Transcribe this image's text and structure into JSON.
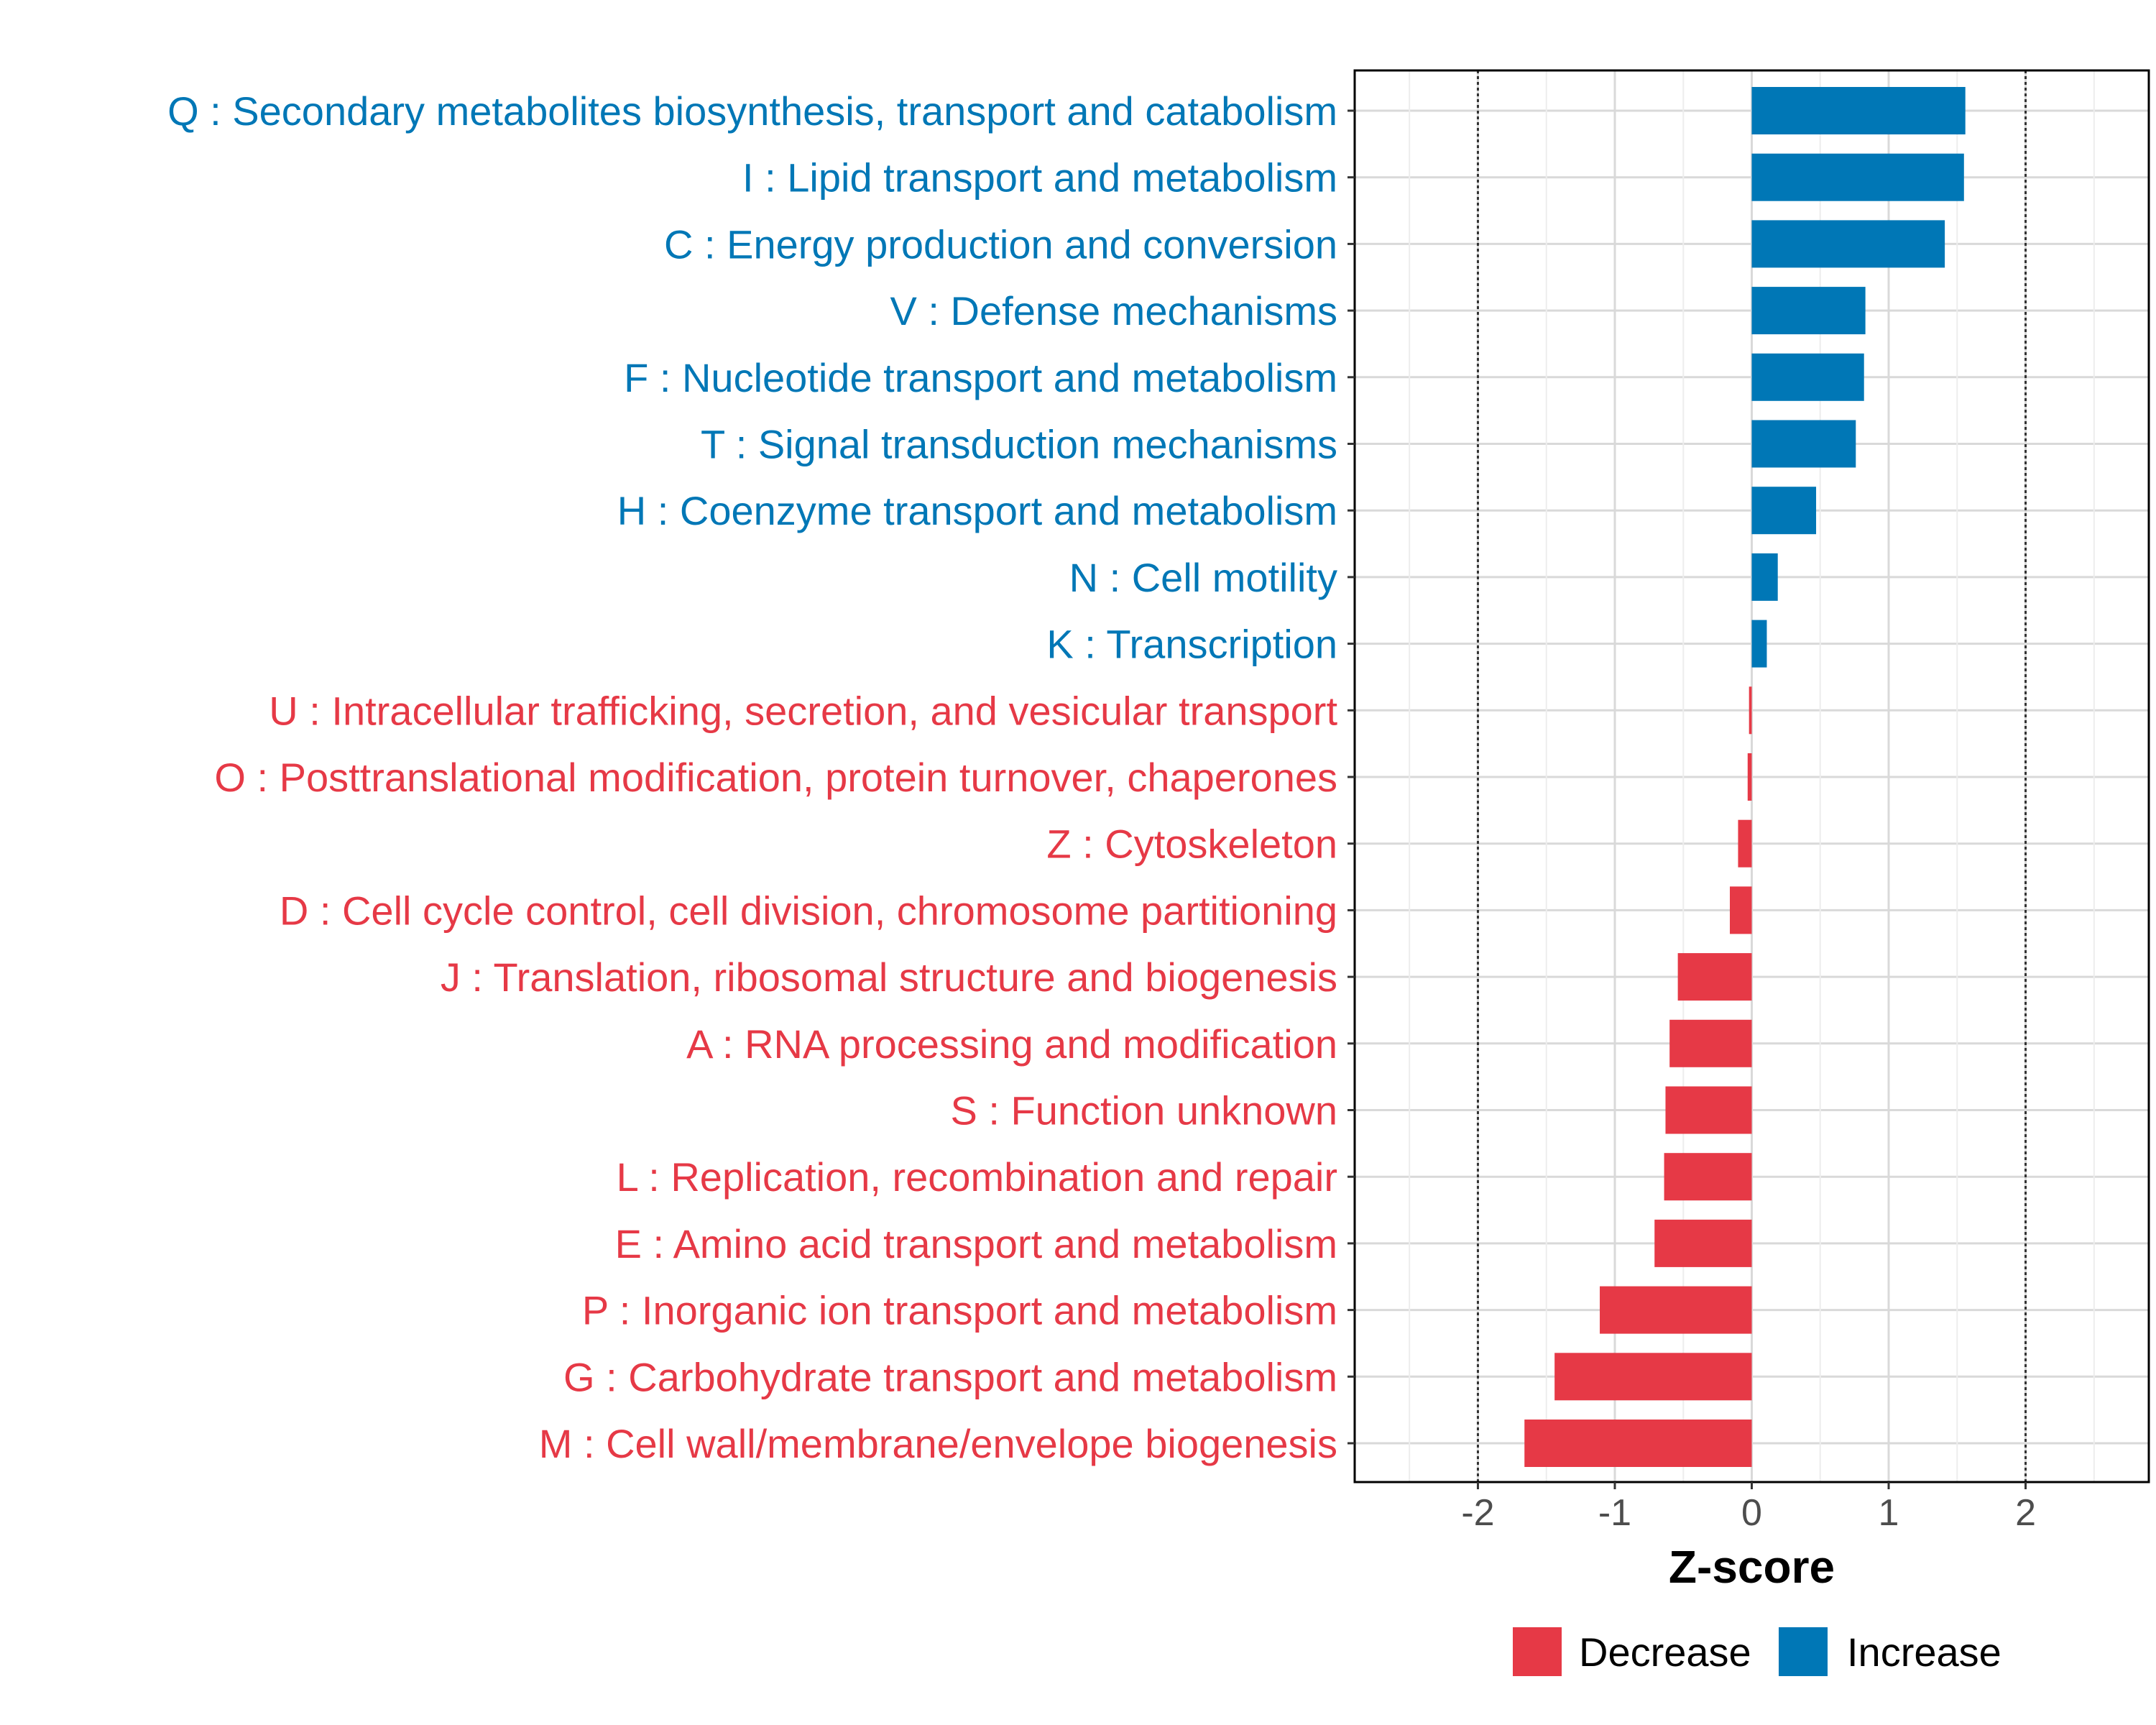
{
  "chart_data": {
    "type": "bar",
    "orientation": "horizontal",
    "xlabel": "Z-score",
    "xlim": [
      -2.9,
      2.9
    ],
    "xticks": [
      -2,
      -1,
      0,
      1,
      2
    ],
    "xtick_labels": [
      "-2",
      "-1",
      "0",
      "1",
      "2"
    ],
    "reference_lines": [
      -2,
      2
    ],
    "grid": true,
    "legend_position": "bottom",
    "legend": [
      {
        "name": "Decrease",
        "color": "#E63946"
      },
      {
        "name": "Increase",
        "color": "#0077B6"
      }
    ],
    "categories": [
      "Q : Secondary metabolites biosynthesis, transport and catabolism",
      "I : Lipid transport and metabolism",
      "C : Energy production and conversion",
      "V : Defense mechanisms",
      "F : Nucleotide transport and metabolism",
      "T : Signal transduction mechanisms",
      "H : Coenzyme transport and metabolism",
      "N : Cell motility",
      "K : Transcription",
      "U : Intracellular trafficking, secretion, and vesicular transport",
      "O : Posttranslational modification, protein turnover, chaperones",
      "Z : Cytoskeleton",
      "D : Cell cycle control, cell division, chromosome partitioning",
      "J : Translation, ribosomal structure and biogenesis",
      "A : RNA processing and modification",
      "S : Function unknown",
      "L : Replication, recombination and repair",
      "E : Amino acid transport and metabolism",
      "P : Inorganic ion transport and metabolism",
      "G : Carbohydrate transport and metabolism",
      "M : Cell wall/membrane/envelope biogenesis"
    ],
    "values": [
      1.56,
      1.55,
      1.41,
      0.83,
      0.82,
      0.76,
      0.47,
      0.19,
      0.11,
      -0.02,
      -0.03,
      -0.1,
      -0.16,
      -0.54,
      -0.6,
      -0.63,
      -0.64,
      -0.71,
      -1.11,
      -1.44,
      -1.66
    ]
  }
}
